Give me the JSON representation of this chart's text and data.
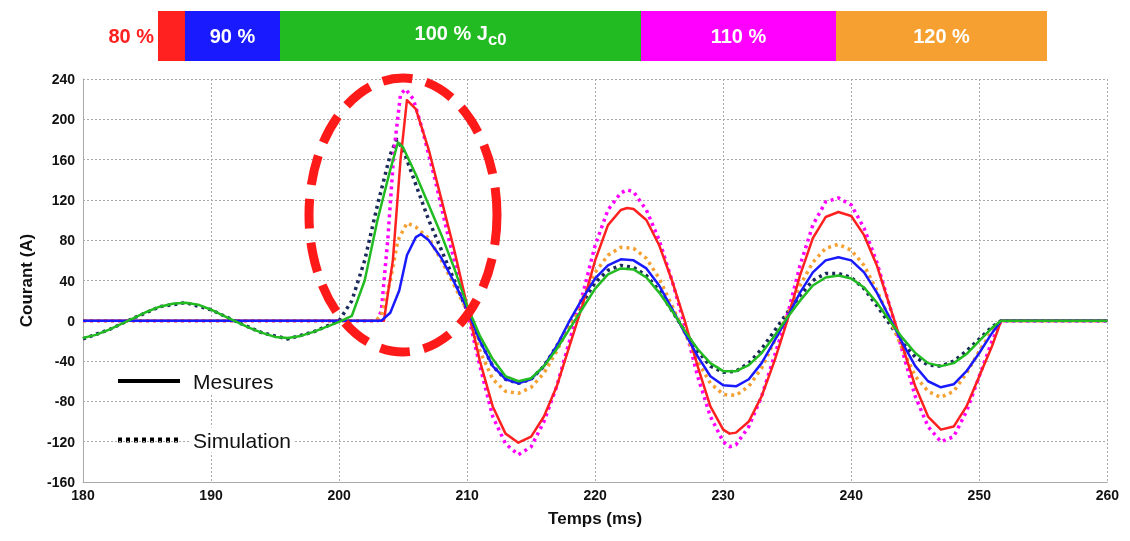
{
  "chart_data": {
    "type": "line",
    "xlabel": "Temps (ms)",
    "ylabel": "Courant (A)",
    "xlim": [
      180,
      260
    ],
    "xticks": [
      180,
      190,
      200,
      210,
      220,
      230,
      240,
      250,
      260
    ],
    "ylim": [
      -160,
      240
    ],
    "yticks": [
      -160,
      -120,
      -80,
      -40,
      0,
      40,
      80,
      120,
      160,
      200,
      240
    ],
    "grid": true,
    "legend": "top",
    "marker": "none",
    "annotations": [
      "Mesures",
      "Simulation"
    ],
    "series": [
      {
        "name": "80 %",
        "color": "#ff2020",
        "line_style": "solid",
        "x": [
          180,
          203.5,
          204.2,
          204.8,
          205.3,
          206,
          207,
          208,
          209,
          210,
          211,
          212,
          213,
          214,
          215,
          216,
          217,
          218,
          219,
          220,
          221,
          222,
          222.5,
          223,
          224,
          225,
          226,
          227,
          228,
          229,
          230,
          230.5,
          231,
          232,
          233,
          234,
          235,
          236,
          237,
          238,
          239,
          240,
          241,
          242,
          243,
          244,
          245,
          246,
          247,
          248,
          249,
          250,
          251,
          251.7,
          260
        ],
        "values": [
          0,
          0,
          60,
          160,
          219,
          210,
          170,
          120,
          70,
          15,
          -40,
          -85,
          -112,
          -121,
          -115,
          -95,
          -65,
          -25,
          15,
          60,
          95,
          110,
          112,
          111,
          100,
          75,
          40,
          0,
          -45,
          -85,
          -108,
          -112,
          -111,
          -100,
          -75,
          -40,
          0,
          45,
          82,
          103,
          108,
          104,
          85,
          55,
          15,
          -25,
          -65,
          -95,
          -108,
          -105,
          -85,
          -55,
          -25,
          0,
          0
        ]
      },
      {
        "name": "90 %",
        "color": "#1a1aff",
        "line_style": "solid",
        "x": [
          180,
          203.3,
          204,
          204.7,
          205.3,
          206,
          206.4,
          207,
          208,
          209,
          210,
          211,
          212,
          213,
          214,
          215,
          216,
          217,
          218,
          219,
          220,
          221,
          222,
          223,
          224,
          225,
          226,
          227,
          228,
          229,
          230,
          231,
          232,
          233,
          234,
          235,
          236,
          237,
          238,
          239,
          240,
          241,
          242,
          243,
          244,
          245,
          246,
          247,
          248,
          249,
          250,
          251,
          251.7,
          260
        ],
        "values": [
          0,
          0,
          8,
          30,
          65,
          83,
          86,
          80,
          62,
          38,
          12,
          -20,
          -45,
          -58,
          -62,
          -58,
          -45,
          -25,
          0,
          22,
          42,
          55,
          61,
          60,
          52,
          35,
          12,
          -12,
          -35,
          -55,
          -64,
          -65,
          -58,
          -42,
          -20,
          3,
          28,
          48,
          60,
          63,
          60,
          48,
          28,
          3,
          -22,
          -45,
          -60,
          -66,
          -63,
          -50,
          -32,
          -12,
          0,
          0
        ]
      },
      {
        "name": "100 % J$_{c0}$",
        "color": "#22bb22",
        "line_style": "solid",
        "x": [
          180,
          181,
          182,
          183,
          184,
          185,
          186,
          187,
          188,
          189,
          190,
          191,
          192,
          193,
          194,
          195,
          196,
          197,
          198,
          199,
          200,
          201,
          202,
          203,
          204,
          204.6,
          205,
          206,
          207,
          208,
          209,
          210,
          211,
          212,
          213,
          214,
          215,
          216,
          217,
          218,
          219,
          220,
          221,
          222,
          223,
          224,
          225,
          226,
          227,
          228,
          229,
          230,
          231,
          232,
          233,
          234,
          235,
          236,
          237,
          238,
          239,
          240,
          241,
          242,
          243,
          244,
          245,
          246,
          247,
          248,
          249,
          250,
          251,
          251.7,
          260
        ],
        "values": [
          -17,
          -14,
          -9,
          -3,
          3,
          9,
          14,
          17,
          18,
          16,
          11,
          5,
          -1,
          -7,
          -12,
          -16,
          -17,
          -15,
          -11,
          -6,
          -1,
          5,
          40,
          100,
          150,
          177,
          172,
          145,
          115,
          85,
          52,
          15,
          -15,
          -38,
          -55,
          -60,
          -57,
          -45,
          -28,
          -8,
          12,
          32,
          46,
          52,
          51,
          43,
          28,
          10,
          -10,
          -28,
          -42,
          -50,
          -50,
          -44,
          -32,
          -15,
          3,
          20,
          35,
          43,
          45,
          42,
          33,
          18,
          0,
          -17,
          -32,
          -42,
          -45,
          -42,
          -33,
          -20,
          -7,
          0,
          0
        ]
      },
      {
        "color": "#1a2a5a",
        "line_style": "dotted",
        "x": [
          180,
          182,
          184,
          186,
          188,
          190,
          192,
          194,
          196,
          198,
          200,
          201,
          202,
          203,
          204,
          204.5,
          205,
          206,
          207,
          208,
          209,
          210,
          211,
          212,
          213,
          214,
          215,
          216,
          217,
          218,
          219,
          220,
          221,
          222,
          223,
          224,
          225,
          226,
          227,
          228,
          229,
          230,
          231,
          232,
          233,
          234,
          235,
          236,
          237,
          238,
          239,
          240,
          241,
          242,
          243,
          244,
          245,
          246,
          247,
          248,
          249,
          250,
          251,
          251.7,
          260
        ],
        "values": [
          -18,
          -9,
          3,
          14,
          18,
          11,
          -1,
          -12,
          -18,
          -11,
          0,
          20,
          60,
          115,
          165,
          180,
          170,
          135,
          100,
          70,
          40,
          10,
          -20,
          -45,
          -58,
          -62,
          -58,
          -45,
          -25,
          -3,
          18,
          38,
          50,
          55,
          53,
          45,
          30,
          10,
          -10,
          -30,
          -45,
          -51,
          -50,
          -42,
          -28,
          -10,
          8,
          25,
          40,
          47,
          47,
          43,
          32,
          15,
          -3,
          -22,
          -36,
          -44,
          -45,
          -40,
          -30,
          -18,
          -6,
          0,
          0
        ]
      },
      {
        "name": "110 %",
        "color": "#ff00ff",
        "line_style": "dotted",
        "x": [
          180,
          203,
          203.3,
          203.8,
          204.3,
          204.8,
          205.2,
          205.8,
          206.5,
          207.5,
          208.5,
          209.5,
          210,
          211,
          212,
          213,
          214,
          215,
          216,
          217,
          218,
          219,
          220,
          221,
          222,
          222.5,
          223,
          224,
          225,
          226,
          227,
          228,
          229,
          230,
          230.5,
          231,
          232,
          233,
          234,
          235,
          236,
          237,
          238,
          239,
          240,
          241,
          242,
          243,
          244,
          245,
          246,
          247,
          248,
          249,
          250,
          251,
          251.7,
          260
        ],
        "values": [
          0,
          0,
          10,
          80,
          170,
          225,
          230,
          220,
          190,
          140,
          85,
          35,
          10,
          -45,
          -95,
          -122,
          -133,
          -125,
          -100,
          -65,
          -20,
          25,
          75,
          110,
          127,
          130,
          128,
          110,
          80,
          40,
          -5,
          -55,
          -95,
          -120,
          -125,
          -123,
          -105,
          -75,
          -35,
          5,
          55,
          95,
          118,
          122,
          115,
          92,
          58,
          15,
          -30,
          -75,
          -105,
          -120,
          -115,
          -90,
          -55,
          -20,
          0,
          0
        ]
      },
      {
        "name": "120 %",
        "color": "#f5a030",
        "line_style": "dotted",
        "x": [
          180,
          202.8,
          203.3,
          204,
          204.6,
          205.3,
          206,
          207,
          208,
          209,
          210,
          211,
          212,
          213,
          214,
          215,
          216,
          217,
          218,
          219,
          220,
          221,
          222,
          223,
          224,
          225,
          226,
          227,
          228,
          229,
          230,
          231,
          232,
          233,
          234,
          235,
          236,
          237,
          238,
          239,
          240,
          241,
          242,
          243,
          244,
          245,
          246,
          247,
          248,
          249,
          250,
          251,
          251.7,
          260
        ],
        "values": [
          0,
          0,
          5,
          40,
          80,
          97,
          93,
          82,
          60,
          35,
          10,
          -30,
          -58,
          -70,
          -72,
          -66,
          -52,
          -30,
          -5,
          22,
          48,
          65,
          73,
          72,
          62,
          42,
          15,
          -12,
          -40,
          -62,
          -73,
          -74,
          -65,
          -47,
          -20,
          5,
          35,
          58,
          72,
          76,
          70,
          55,
          30,
          2,
          -28,
          -55,
          -70,
          -76,
          -70,
          -52,
          -30,
          -10,
          0,
          0
        ]
      }
    ]
  }
}
